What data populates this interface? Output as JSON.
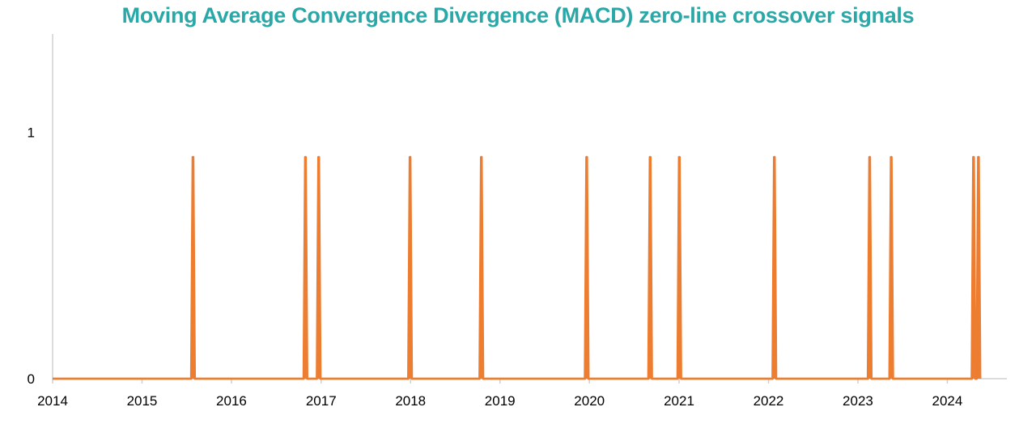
{
  "chart_data": {
    "type": "line",
    "title": "Moving Average Convergence Divergence (MACD) zero-line crossover signals",
    "xlabel": "",
    "ylabel": "",
    "x_ticks": [
      "2014",
      "2015",
      "2016",
      "2017",
      "2018",
      "2019",
      "2020",
      "2021",
      "2022",
      "2023",
      "2024"
    ],
    "y_ticks": [
      "0",
      "1"
    ],
    "xlim": [
      "2014-01-01",
      "2024-08-31"
    ],
    "ylim": [
      0,
      1.4
    ],
    "grid": false,
    "legend": "none",
    "signal_value": 0.9,
    "series": [
      {
        "color": "#ed7d31",
        "signal_dates": [
          "2015-07-28",
          "2016-10-29",
          "2016-12-22",
          "2017-12-30",
          "2018-10-17",
          "2019-12-21",
          "2020-09-05",
          "2021-01-02",
          "2022-01-25",
          "2023-02-18",
          "2023-05-17",
          "2024-04-17",
          "2024-05-07"
        ]
      }
    ],
    "colors": {
      "line": "#ed7d31",
      "title": "#2aa7a7",
      "axis": "#d0d0d0"
    }
  }
}
